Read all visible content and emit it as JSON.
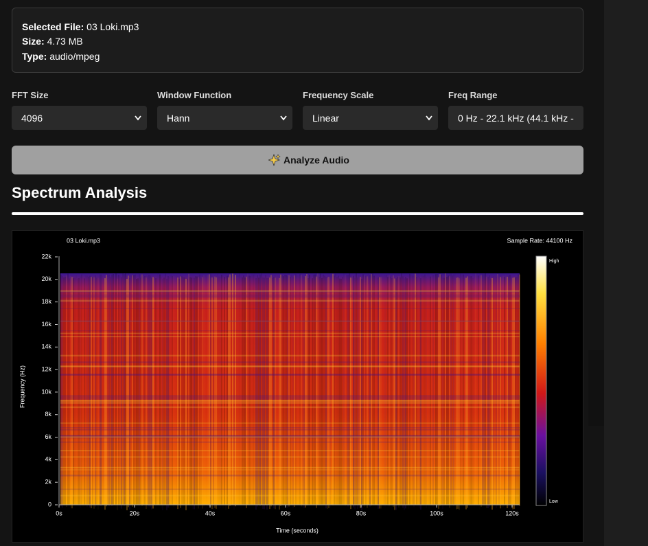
{
  "file_info": {
    "rows": [
      {
        "label": "Selected File:",
        "value": "03 Loki.mp3"
      },
      {
        "label": "Size:",
        "value": "4.73 MB"
      },
      {
        "label": "Type:",
        "value": "audio/mpeg"
      }
    ]
  },
  "controls": [
    {
      "label": "FFT Size",
      "value": "4096"
    },
    {
      "label": "Window Function",
      "value": "Hann"
    },
    {
      "label": "Frequency Scale",
      "value": "Linear"
    },
    {
      "label": "Freq Range",
      "value": "0 Hz - 22.1 kHz (44.1 kHz -"
    }
  ],
  "button": {
    "label": "Analyze Audio"
  },
  "section": {
    "title": "Spectrum Analysis"
  },
  "chart_data": {
    "type": "heatmap",
    "title": "03 Loki.mp3",
    "subtitle": "Sample Rate: 44100 Hz",
    "x_label": "Time (seconds)",
    "y_label": "Frequency (Hz)",
    "xlim": [
      0,
      122
    ],
    "ylim": [
      0,
      22050
    ],
    "xticks": [
      {
        "value": 0,
        "label": "0s"
      },
      {
        "value": 20,
        "label": "20s"
      },
      {
        "value": 40,
        "label": "40s"
      },
      {
        "value": 60,
        "label": "60s"
      },
      {
        "value": 80,
        "label": "80s"
      },
      {
        "value": 100,
        "label": "100s"
      },
      {
        "value": 120,
        "label": "120s"
      }
    ],
    "yticks": [
      0,
      {
        "value": 2000,
        "label": "2k"
      },
      {
        "value": 4000,
        "label": "4k"
      },
      {
        "value": 6000,
        "label": "6k"
      },
      {
        "value": 8000,
        "label": "8k"
      },
      {
        "value": 10000,
        "label": "10k"
      },
      {
        "value": 12000,
        "label": "12k"
      },
      {
        "value": 14000,
        "label": "14k"
      },
      {
        "value": 16000,
        "label": "16k"
      },
      {
        "value": 18000,
        "label": "18k"
      },
      {
        "value": 20000,
        "label": "20k"
      },
      {
        "value": 22000,
        "label": "22k"
      }
    ],
    "colorbar": {
      "high": "High",
      "low": "Low"
    }
  }
}
